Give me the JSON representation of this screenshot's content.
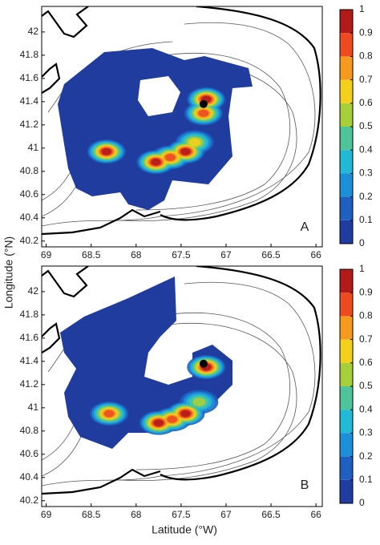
{
  "chart_data": [
    {
      "type": "heatmap",
      "panel_label": "A",
      "ylabel": "Longitude (°N)",
      "xlim": [
        69.05,
        65.93
      ],
      "xticks": [
        69,
        68.5,
        68,
        67.5,
        67,
        66.5,
        66
      ],
      "ylim": [
        40.15,
        42.22
      ],
      "yticks": [
        40.2,
        40.4,
        40.6,
        40.8,
        41,
        41.2,
        41.4,
        41.6,
        41.8,
        42
      ],
      "zlim": [
        0,
        1
      ],
      "zticks": [
        0,
        0.1,
        0.2,
        0.3,
        0.4,
        0.5,
        0.6,
        0.7,
        0.8,
        0.9,
        1
      ],
      "colormap": [
        "#1f3c9e",
        "#1e5fbf",
        "#1d8fd9",
        "#22b8d6",
        "#4fc49a",
        "#a6cf3a",
        "#f4d01c",
        "#f59a1f",
        "#ee4a22",
        "#b31b1b"
      ],
      "hotspots": {
        "x": [
          68.33,
          67.78,
          67.62,
          67.45,
          67.35,
          67.25,
          67.22
        ],
        "y": [
          40.97,
          40.88,
          40.92,
          40.97,
          41.05,
          41.3,
          41.42
        ],
        "values": [
          0.95,
          0.9,
          0.8,
          0.95,
          0.7,
          0.8,
          0.9
        ]
      },
      "marker": {
        "x": 67.25,
        "y": 41.38
      }
    },
    {
      "type": "heatmap",
      "panel_label": "B",
      "xlabel": "Latitude (°W)",
      "xlim": [
        69.05,
        65.93
      ],
      "xticks": [
        69,
        68.5,
        68,
        67.5,
        67,
        66.5,
        66
      ],
      "ylim": [
        40.15,
        42.22
      ],
      "yticks": [
        40.2,
        40.4,
        40.6,
        40.8,
        41,
        41.2,
        41.4,
        41.6,
        41.8,
        42
      ],
      "zlim": [
        0,
        1
      ],
      "zticks": [
        0,
        0.1,
        0.2,
        0.3,
        0.4,
        0.5,
        0.6,
        0.7,
        0.8,
        0.9,
        1
      ],
      "colormap": [
        "#1f3c9e",
        "#1e5fbf",
        "#1d8fd9",
        "#22b8d6",
        "#4fc49a",
        "#a6cf3a",
        "#f4d01c",
        "#f59a1f",
        "#ee4a22",
        "#b31b1b"
      ],
      "hotspots": {
        "x": [
          68.3,
          67.75,
          67.6,
          67.45,
          67.3,
          67.22
        ],
        "y": [
          40.95,
          40.87,
          40.9,
          40.95,
          41.05,
          41.35
        ],
        "values": [
          0.85,
          0.9,
          0.8,
          0.95,
          0.6,
          0.95
        ]
      },
      "marker": {
        "x": 67.25,
        "y": 41.38
      }
    }
  ]
}
